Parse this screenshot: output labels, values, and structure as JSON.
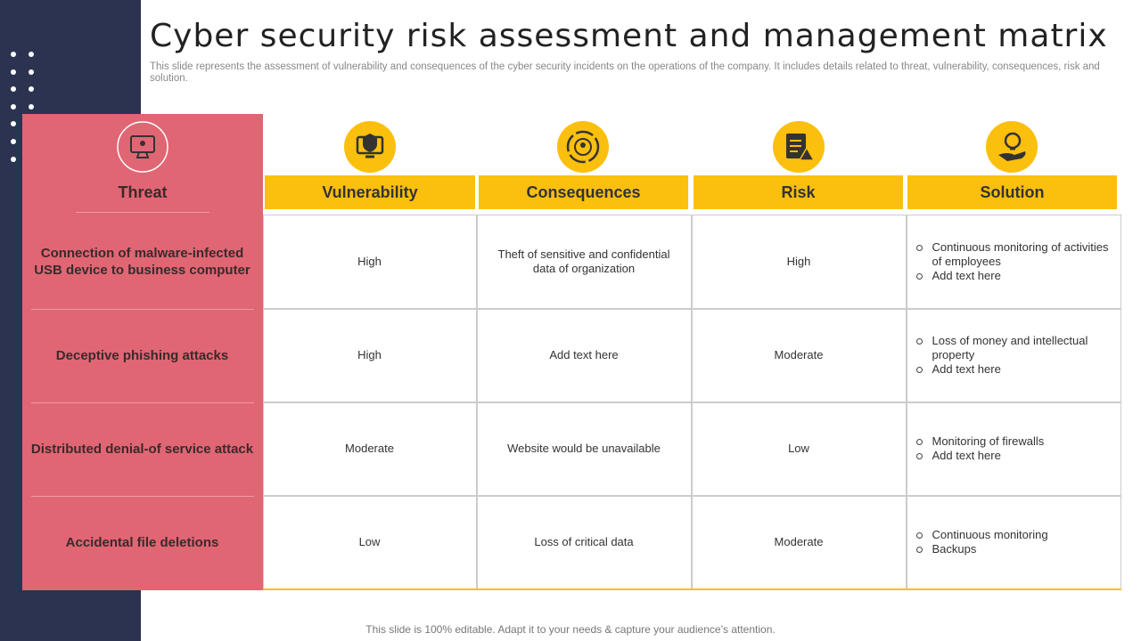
{
  "header": {
    "title": "Cyber security risk assessment and management matrix",
    "subtitle": "This slide represents the assessment of vulnerability and consequences of the cyber security incidents on the operations of the company. It includes details related to threat, vulnerability, consequences, risk and solution."
  },
  "table": {
    "columns": [
      "Threat",
      "Vulnerability",
      "Consequences",
      "Risk",
      "Solution"
    ],
    "rows": [
      [
        "Connection of malware-infected USB device to business computer",
        "High",
        "Theft of sensitive and confidential data of organization",
        "High",
        [
          "Continuous monitoring of activities of employees",
          "Add text here"
        ]
      ],
      [
        "Deceptive phishing attacks",
        "High",
        "Add text here",
        "Moderate",
        [
          "Loss of money and intellectual property",
          "Add text here"
        ]
      ],
      [
        "Distributed denial-of service attack",
        "Moderate",
        "Website would be unavailable",
        "Low",
        [
          "Monitoring of firewalls",
          "Add text here"
        ]
      ],
      [
        "Accidental file deletions",
        "Low",
        "Loss of critical data",
        "Moderate",
        [
          "Continuous monitoring",
          "Backups"
        ]
      ]
    ]
  },
  "footer": "This slide is 100% editable. Adapt it to your needs & capture your audience’s attention."
}
